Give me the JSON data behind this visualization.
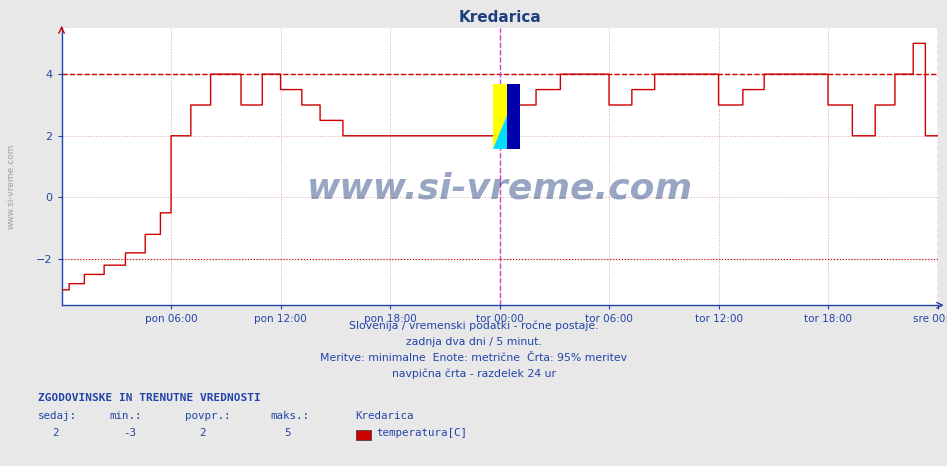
{
  "title": "Kredarica",
  "title_color": "#1e4080",
  "bg_color": "#e8e8e8",
  "plot_bg_color": "#ffffff",
  "line_color": "#cc0000",
  "grid_color": "#cccccc",
  "grid_color2": "#ddaaaa",
  "axis_color": "#2244aa",
  "vline_color": "#cc44cc",
  "hline_color": "#cc0000",
  "ylim": [
    -3.5,
    5.5
  ],
  "yticks": [
    -2,
    0,
    2,
    4
  ],
  "xlabel_color": "#2244aa",
  "text_color": "#2244aa",
  "subtitle1": "Slovenija / vremenski podatki - ročne postaje.",
  "subtitle2": "zadnja dva dni / 5 minut.",
  "subtitle3": "Meritve: minimalne  Enote: metrične  Črta: 95% meritev",
  "subtitle4": "navpična črta - razdelek 24 ur",
  "footer_bold": "ZGODOVINSKE IN TRENUTNE VREDNOSTI",
  "footer_col1_label": "sedaj:",
  "footer_col2_label": "min.:",
  "footer_col3_label": "povpr.:",
  "footer_col4_label": "maks.:",
  "footer_col5_label": "Kredarica",
  "footer_col1_val": "2",
  "footer_col2_val": "-3",
  "footer_col3_val": "2",
  "footer_col4_val": "5",
  "footer_legend_label": "temperatura[C]",
  "legend_color": "#cc0000",
  "xtick_labels": [
    "pon 06:00",
    "pon 12:00",
    "pon 18:00",
    "tor 00:00",
    "tor 06:00",
    "tor 12:00",
    "tor 18:00",
    "sre 00:00"
  ],
  "watermark_text": "www.si-vreme.com",
  "watermark_color": "#1e3a7a",
  "sidewater_text": "www.si-vreme.com"
}
